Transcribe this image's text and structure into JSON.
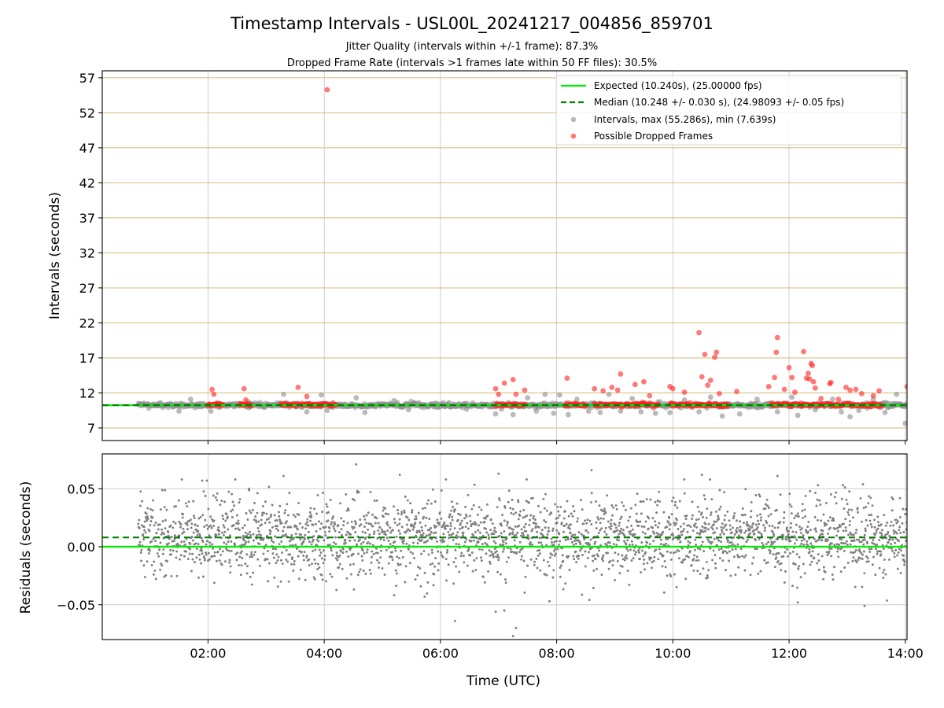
{
  "chart_data": {
    "title": "Timestamp Intervals - USL00L_20241217_004856_859701",
    "subtitle_lines": [
      "Jitter Quality (intervals within +/-1 frame): 87.3%",
      "Dropped Frame Rate (intervals >1 frames late within 50 FF files): 30.5%"
    ],
    "x_time": {
      "label": "Time (UTC)",
      "range_hours": [
        0.18,
        14.03
      ],
      "ticks": [
        2,
        4,
        6,
        8,
        10,
        12,
        14
      ],
      "tick_labels": [
        "02:00",
        "04:00",
        "06:00",
        "08:00",
        "10:00",
        "12:00",
        "14:00"
      ]
    },
    "colors": {
      "expected": "#00ee00",
      "median": "#008000",
      "intervals": "#8c8c8c",
      "dropped": "#ff2020",
      "gold_grid": "#d2b46a",
      "residuals": "#7f7f7f"
    },
    "top_panel": {
      "type": "scatter",
      "ylabel": "Intervals (seconds)",
      "ylim": [
        5.2,
        58.0
      ],
      "yticks": [
        7,
        12,
        17,
        22,
        27,
        32,
        37,
        42,
        47,
        52,
        57
      ],
      "yticklabels": [
        "7",
        "12",
        "17",
        "22",
        "27",
        "32",
        "37",
        "42",
        "47",
        "52",
        "57"
      ],
      "expected_value": 10.24,
      "median_value": 10.248,
      "legend_position": "top-right",
      "legend": [
        "Expected (10.240s), (25.00000 fps)",
        "Median (10.248 +/- 0.030 s), (24.98093 +/- 0.05 fps)",
        "Intervals, max (55.286s), min (7.639s)",
        "Possible Dropped Frames"
      ],
      "intervals_band": {
        "x_range_hours": [
          0.8,
          14.03
        ],
        "y_center": 10.25,
        "y_spread": 0.45
      },
      "interval_outliers": [
        [
          1.5,
          9.4
        ],
        [
          1.7,
          11.1
        ],
        [
          2.05,
          9.4
        ],
        [
          2.7,
          10.7
        ],
        [
          3.3,
          11.8
        ],
        [
          3.7,
          9.3
        ],
        [
          3.95,
          11.7
        ],
        [
          4.05,
          9.5
        ],
        [
          4.55,
          11.3
        ],
        [
          4.7,
          9.2
        ],
        [
          5.2,
          10.9
        ],
        [
          5.45,
          9.6
        ],
        [
          6.15,
          10.6
        ],
        [
          6.45,
          9.7
        ],
        [
          6.95,
          9.0
        ],
        [
          7.05,
          9.7
        ],
        [
          7.25,
          8.9
        ],
        [
          7.5,
          11.3
        ],
        [
          7.65,
          9.4
        ],
        [
          7.8,
          11.8
        ],
        [
          7.95,
          9.1
        ],
        [
          8.05,
          11.7
        ],
        [
          8.2,
          8.9
        ],
        [
          8.35,
          11.1
        ],
        [
          8.55,
          9.4
        ],
        [
          8.75,
          9.2
        ],
        [
          8.9,
          11.8
        ],
        [
          9.1,
          9.4
        ],
        [
          9.3,
          11.2
        ],
        [
          9.45,
          9.3
        ],
        [
          9.7,
          9.1
        ],
        [
          9.95,
          9.2
        ],
        [
          10.2,
          11.0
        ],
        [
          10.45,
          9.3
        ],
        [
          10.65,
          11.4
        ],
        [
          10.85,
          8.7
        ],
        [
          11.15,
          9.0
        ],
        [
          11.45,
          11.1
        ],
        [
          11.8,
          9.3
        ],
        [
          12.05,
          11.4
        ],
        [
          12.15,
          8.8
        ],
        [
          12.45,
          9.6
        ],
        [
          12.75,
          11.1
        ],
        [
          12.9,
          9.3
        ],
        [
          13.05,
          8.6
        ],
        [
          13.2,
          9.5
        ],
        [
          13.45,
          11.1
        ],
        [
          13.65,
          9.2
        ],
        [
          13.85,
          11.8
        ],
        [
          14.0,
          7.64
        ]
      ],
      "dropped_clusters": [
        [
          2.0,
          2.25
        ],
        [
          2.55,
          2.75
        ],
        [
          3.25,
          3.55
        ],
        [
          3.6,
          3.95
        ],
        [
          3.95,
          4.2
        ],
        [
          6.95,
          7.45
        ],
        [
          8.15,
          8.5
        ],
        [
          8.65,
          9.45
        ],
        [
          9.45,
          9.75
        ],
        [
          9.95,
          10.4
        ],
        [
          10.4,
          10.95
        ],
        [
          11.7,
          12.35
        ],
        [
          12.35,
          13.0
        ],
        [
          13.0,
          13.35
        ],
        [
          13.35,
          13.6
        ]
      ],
      "dropped_cluster_y": 10.3,
      "dropped_outliers": [
        [
          2.07,
          12.5
        ],
        [
          2.1,
          11.8
        ],
        [
          2.62,
          12.6
        ],
        [
          2.65,
          11.0
        ],
        [
          3.55,
          12.8
        ],
        [
          3.7,
          11.5
        ],
        [
          4.05,
          55.29
        ],
        [
          6.95,
          12.6
        ],
        [
          7.0,
          11.8
        ],
        [
          7.1,
          13.4
        ],
        [
          7.25,
          13.9
        ],
        [
          7.3,
          11.8
        ],
        [
          7.45,
          12.4
        ],
        [
          8.18,
          14.1
        ],
        [
          8.65,
          12.6
        ],
        [
          8.8,
          12.3
        ],
        [
          8.95,
          12.8
        ],
        [
          9.05,
          12.4
        ],
        [
          9.1,
          14.7
        ],
        [
          9.35,
          13.2
        ],
        [
          9.5,
          13.6
        ],
        [
          9.6,
          11.6
        ],
        [
          9.95,
          12.9
        ],
        [
          10.0,
          12.6
        ],
        [
          10.2,
          12.1
        ],
        [
          10.45,
          20.6
        ],
        [
          10.5,
          14.3
        ],
        [
          10.55,
          17.5
        ],
        [
          10.6,
          13.1
        ],
        [
          10.65,
          13.8
        ],
        [
          10.72,
          17.1
        ],
        [
          10.75,
          17.8
        ],
        [
          10.8,
          11.9
        ],
        [
          11.1,
          12.2
        ],
        [
          11.65,
          12.9
        ],
        [
          11.75,
          14.2
        ],
        [
          11.78,
          17.8
        ],
        [
          11.8,
          19.9
        ],
        [
          11.92,
          12.5
        ],
        [
          12.0,
          15.6
        ],
        [
          12.05,
          14.2
        ],
        [
          12.1,
          12.1
        ],
        [
          12.25,
          17.9
        ],
        [
          12.3,
          14.1
        ],
        [
          12.33,
          14.8
        ],
        [
          12.35,
          14.0
        ],
        [
          12.38,
          16.2
        ],
        [
          12.4,
          15.9
        ],
        [
          12.42,
          13.6
        ],
        [
          12.45,
          12.7
        ],
        [
          12.55,
          11.2
        ],
        [
          12.7,
          13.3
        ],
        [
          12.72,
          13.5
        ],
        [
          12.85,
          11.1
        ],
        [
          12.98,
          12.8
        ],
        [
          13.05,
          12.4
        ],
        [
          13.15,
          12.5
        ],
        [
          13.25,
          11.9
        ],
        [
          13.45,
          11.6
        ],
        [
          13.55,
          12.3
        ],
        [
          14.03,
          12.9
        ]
      ]
    },
    "bottom_panel": {
      "type": "scatter",
      "ylabel": "Residuals (seconds)",
      "ylim": [
        -0.08,
        0.08
      ],
      "yticks": [
        -0.05,
        0.0,
        0.05
      ],
      "yticklabels": [
        "−0.05",
        "0.00",
        "0.05"
      ],
      "expected_value": 0.0,
      "median_value": 0.008,
      "x_range_hours": [
        0.8,
        14.03
      ],
      "residual_spread_sd": 0.022,
      "residual_outliers": [
        [
          4.55,
          0.071
        ],
        [
          5.3,
          0.062
        ],
        [
          7.3,
          -0.07
        ],
        [
          7.25,
          -0.077
        ],
        [
          6.95,
          -0.056
        ],
        [
          6.25,
          -0.064
        ],
        [
          7.1,
          -0.055
        ],
        [
          12.15,
          -0.048
        ],
        [
          13.3,
          -0.051
        ],
        [
          8.6,
          0.066
        ],
        [
          1.9,
          0.057
        ],
        [
          3.3,
          0.061
        ],
        [
          7.0,
          0.063
        ],
        [
          10.5,
          0.062
        ],
        [
          11.8,
          0.061
        ]
      ]
    }
  }
}
